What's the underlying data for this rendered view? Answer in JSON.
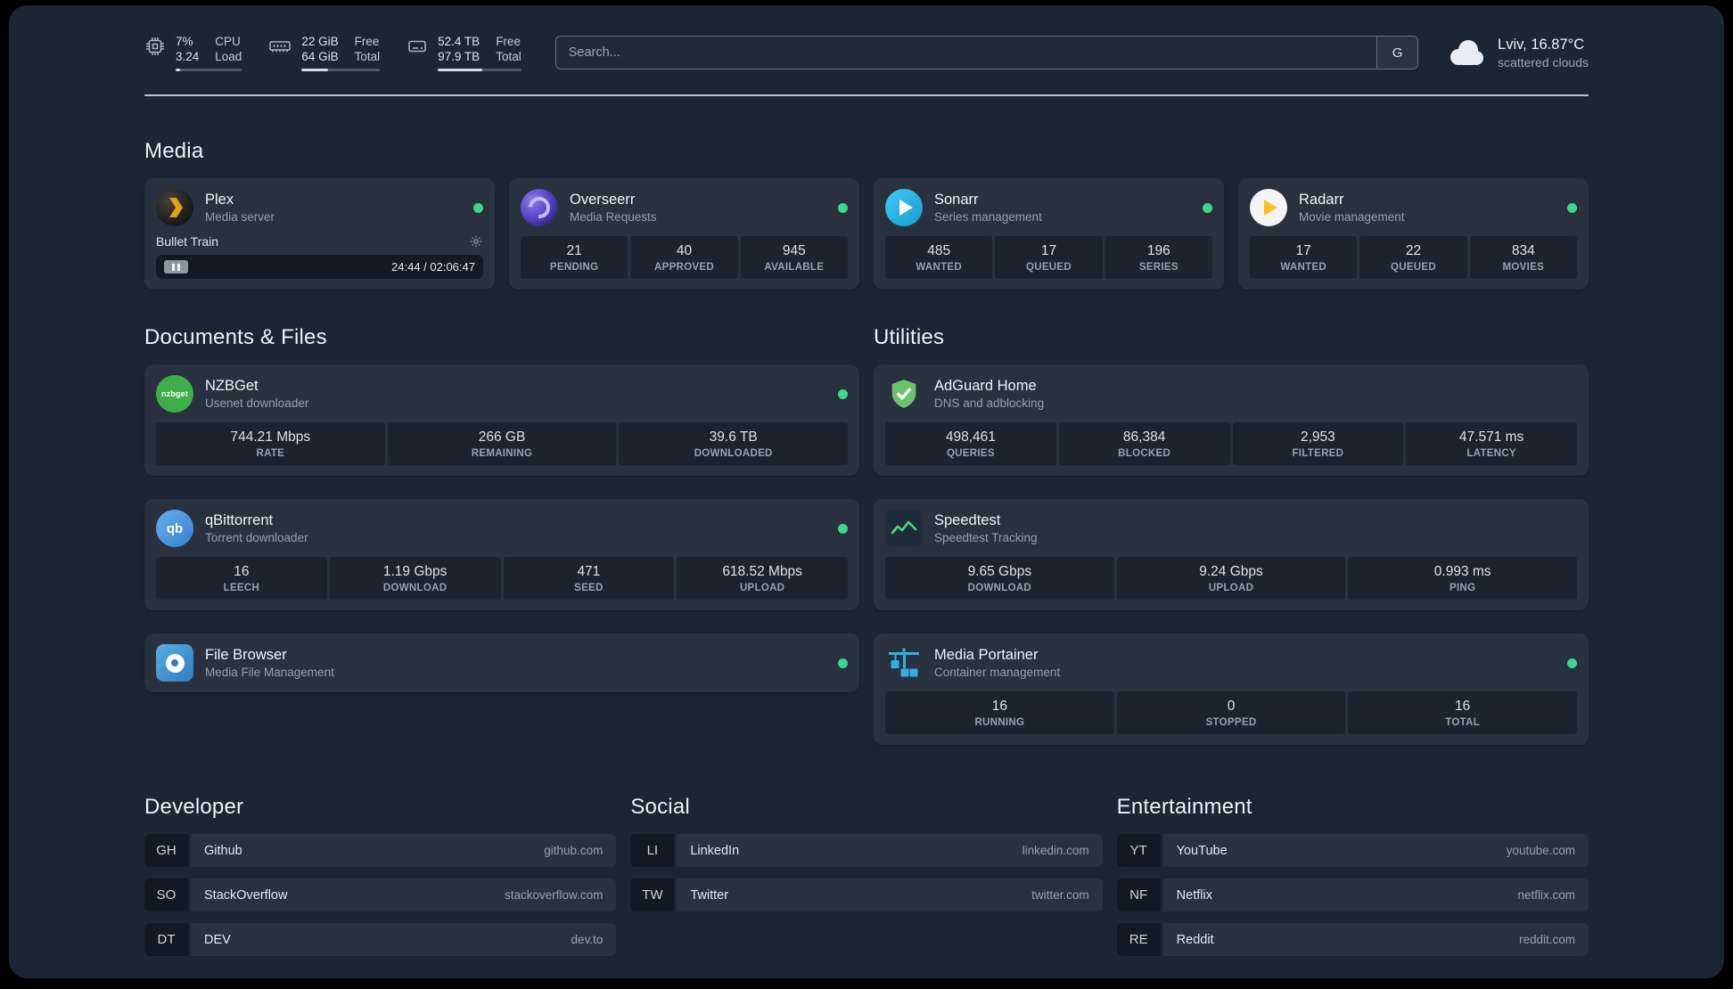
{
  "statusbar": {
    "cpu": {
      "value": "7%",
      "sub": "3.24",
      "label_top": "CPU",
      "label_bottom": "Load",
      "percent": 7
    },
    "ram": {
      "value": "22 GiB",
      "sub": "64 GiB",
      "label_top": "Free",
      "label_bottom": "Total",
      "percent": 34
    },
    "disk": {
      "value": "52.4 TB",
      "sub": "97.9 TB",
      "label_top": "Free",
      "label_bottom": "Total",
      "percent": 53
    },
    "search": {
      "placeholder": "Search...",
      "button_label": "G"
    },
    "weather": {
      "location": "Lviv, 16.87°C",
      "condition": "scattered clouds"
    }
  },
  "colors": {
    "status_online": "#3dd68c",
    "background": "#1c2533"
  },
  "media": {
    "title": "Media",
    "plex": {
      "name": "Plex",
      "desc": "Media server",
      "track": "Bullet Train",
      "time": "24:44 / 02:06:47"
    },
    "overseerr": {
      "name": "Overseerr",
      "desc": "Media Requests",
      "stats": [
        {
          "value": "21",
          "label": "PENDING"
        },
        {
          "value": "40",
          "label": "APPROVED"
        },
        {
          "value": "945",
          "label": "AVAILABLE"
        }
      ]
    },
    "sonarr": {
      "name": "Sonarr",
      "desc": "Series management",
      "stats": [
        {
          "value": "485",
          "label": "WANTED"
        },
        {
          "value": "17",
          "label": "QUEUED"
        },
        {
          "value": "196",
          "label": "SERIES"
        }
      ]
    },
    "radarr": {
      "name": "Radarr",
      "desc": "Movie management",
      "stats": [
        {
          "value": "17",
          "label": "WANTED"
        },
        {
          "value": "22",
          "label": "QUEUED"
        },
        {
          "value": "834",
          "label": "MOVIES"
        }
      ]
    }
  },
  "documents": {
    "title": "Documents & Files",
    "nzbget": {
      "name": "NZBGet",
      "desc": "Usenet downloader",
      "stats": [
        {
          "value": "744.21 Mbps",
          "label": "RATE"
        },
        {
          "value": "266 GB",
          "label": "REMAINING"
        },
        {
          "value": "39.6 TB",
          "label": "DOWNLOADED"
        }
      ]
    },
    "qbittorrent": {
      "name": "qBittorrent",
      "desc": "Torrent downloader",
      "stats": [
        {
          "value": "16",
          "label": "LEECH"
        },
        {
          "value": "1.19 Gbps",
          "label": "DOWNLOAD"
        },
        {
          "value": "471",
          "label": "SEED"
        },
        {
          "value": "618.52 Mbps",
          "label": "UPLOAD"
        }
      ]
    },
    "filebrowser": {
      "name": "File Browser",
      "desc": "Media File Management"
    }
  },
  "utilities": {
    "title": "Utilities",
    "adguard": {
      "name": "AdGuard Home",
      "desc": "DNS and adblocking",
      "stats": [
        {
          "value": "498,461",
          "label": "QUERIES"
        },
        {
          "value": "86,384",
          "label": "BLOCKED"
        },
        {
          "value": "2,953",
          "label": "FILTERED"
        },
        {
          "value": "47.571 ms",
          "label": "LATENCY"
        }
      ]
    },
    "speedtest": {
      "name": "Speedtest",
      "desc": "Speedtest Tracking",
      "stats": [
        {
          "value": "9.65 Gbps",
          "label": "DOWNLOAD"
        },
        {
          "value": "9.24 Gbps",
          "label": "UPLOAD"
        },
        {
          "value": "0.993 ms",
          "label": "PING"
        }
      ]
    },
    "portainer": {
      "name": "Media Portainer",
      "desc": "Container management",
      "stats": [
        {
          "value": "16",
          "label": "RUNNING"
        },
        {
          "value": "0",
          "label": "STOPPED"
        },
        {
          "value": "16",
          "label": "TOTAL"
        }
      ]
    }
  },
  "bookmarks": {
    "developer": {
      "title": "Developer",
      "items": [
        {
          "abbr": "GH",
          "name": "Github",
          "url": "github.com"
        },
        {
          "abbr": "SO",
          "name": "StackOverflow",
          "url": "stackoverflow.com"
        },
        {
          "abbr": "DT",
          "name": "DEV",
          "url": "dev.to"
        }
      ]
    },
    "social": {
      "title": "Social",
      "items": [
        {
          "abbr": "LI",
          "name": "LinkedIn",
          "url": "linkedin.com"
        },
        {
          "abbr": "TW",
          "name": "Twitter",
          "url": "twitter.com"
        }
      ]
    },
    "entertainment": {
      "title": "Entertainment",
      "items": [
        {
          "abbr": "YT",
          "name": "YouTube",
          "url": "youtube.com"
        },
        {
          "abbr": "NF",
          "name": "Netflix",
          "url": "netflix.com"
        },
        {
          "abbr": "RE",
          "name": "Reddit",
          "url": "reddit.com"
        }
      ]
    }
  },
  "icons": {
    "nzbget_text": "nzbget",
    "qbittorrent_text": "qb"
  }
}
